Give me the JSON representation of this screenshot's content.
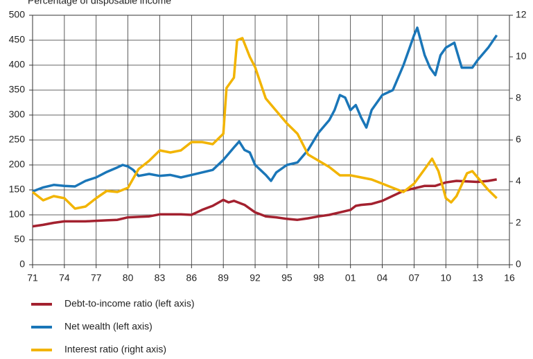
{
  "chart_data": {
    "type": "line",
    "subtitle": "Percentage of disposable income",
    "xlim": [
      1971,
      2016
    ],
    "xticks": [
      {
        "value": 1971,
        "label": "71"
      },
      {
        "value": 1974,
        "label": "74"
      },
      {
        "value": 1977,
        "label": "77"
      },
      {
        "value": 1980,
        "label": "80"
      },
      {
        "value": 1983,
        "label": "83"
      },
      {
        "value": 1986,
        "label": "86"
      },
      {
        "value": 1989,
        "label": "89"
      },
      {
        "value": 1992,
        "label": "92"
      },
      {
        "value": 1995,
        "label": "95"
      },
      {
        "value": 1998,
        "label": "98"
      },
      {
        "value": 2001,
        "label": "01"
      },
      {
        "value": 2004,
        "label": "04"
      },
      {
        "value": 2007,
        "label": "07"
      },
      {
        "value": 2010,
        "label": "10"
      },
      {
        "value": 2013,
        "label": "13"
      },
      {
        "value": 2016,
        "label": "16"
      }
    ],
    "ylim": [
      0,
      500
    ],
    "yticks": [
      0,
      50,
      100,
      150,
      200,
      250,
      300,
      350,
      400,
      450,
      500
    ],
    "y2lim": [
      0,
      12
    ],
    "y2ticks": [
      0,
      2,
      4,
      6,
      8,
      10,
      12
    ],
    "grid": true,
    "series": [
      {
        "name": "Debt-to-income ratio (left axis)",
        "color": "#a3212f",
        "x": [
          1971,
          1972,
          1973,
          1974,
          1975,
          1976,
          1977,
          1978,
          1979,
          1980,
          1981,
          1982,
          1983,
          1984,
          1985,
          1986,
          1987,
          1988,
          1989,
          1989.5,
          1990,
          1991,
          1992,
          1993,
          1994,
          1995,
          1996,
          1997,
          1998,
          1999,
          2000,
          2001,
          2001.5,
          2002,
          2003,
          2004,
          2005,
          2006,
          2007,
          2008,
          2009,
          2010,
          2011,
          2012,
          2013,
          2014,
          2014.8
        ],
        "values": [
          77,
          80,
          84,
          87,
          87,
          87,
          88,
          89,
          90,
          95,
          96,
          97,
          101,
          101,
          101,
          100,
          110,
          118,
          130,
          125,
          128,
          120,
          105,
          97,
          95,
          92,
          90,
          93,
          97,
          100,
          105,
          110,
          118,
          120,
          122,
          128,
          138,
          148,
          153,
          158,
          158,
          165,
          168,
          167,
          166,
          168,
          171
        ]
      },
      {
        "name": "Net wealth (left axis)",
        "color": "#1a76b8",
        "x": [
          1971,
          1972,
          1973,
          1974,
          1975,
          1976,
          1977,
          1978,
          1979,
          1979.5,
          1980,
          1980.5,
          1981,
          1982,
          1983,
          1984,
          1985,
          1986,
          1987,
          1988,
          1989,
          1990,
          1990.5,
          1991,
          1991.5,
          1992,
          1993,
          1993.5,
          1994,
          1995,
          1996,
          1997,
          1998,
          1999,
          1999.5,
          2000,
          2000.5,
          2001,
          2001.5,
          2002,
          2002.5,
          2003,
          2004,
          2005,
          2006,
          2006.5,
          2007,
          2007.3,
          2008,
          2008.5,
          2009,
          2009.5,
          2010,
          2010.8,
          2011.5,
          2012,
          2012.5,
          2013,
          2014,
          2014.8
        ],
        "values": [
          147,
          155,
          160,
          158,
          157,
          168,
          175,
          186,
          195,
          200,
          197,
          190,
          178,
          182,
          178,
          180,
          175,
          180,
          185,
          190,
          210,
          235,
          247,
          230,
          225,
          200,
          180,
          168,
          185,
          200,
          205,
          230,
          265,
          290,
          310,
          340,
          335,
          310,
          320,
          295,
          275,
          310,
          340,
          350,
          400,
          430,
          460,
          475,
          420,
          395,
          380,
          420,
          435,
          445,
          395,
          395,
          395,
          410,
          435,
          460
        ]
      },
      {
        "name": "Interest ratio (right axis)",
        "color": "#f2b400",
        "axis": "y2",
        "x": [
          1971,
          1972,
          1973,
          1974,
          1975,
          1976,
          1977,
          1978,
          1979,
          1980,
          1981,
          1982,
          1983,
          1984,
          1985,
          1986,
          1987,
          1988,
          1989,
          1989.3,
          1990,
          1990.3,
          1990.8,
          1991.5,
          1992,
          1993,
          1994,
          1995,
          1996,
          1997,
          1998,
          1999,
          2000,
          2001,
          2002,
          2003,
          2004,
          2005,
          2006,
          2007,
          2008,
          2008.7,
          2009.3,
          2010,
          2010.5,
          2011,
          2012,
          2012.5,
          2013,
          2014,
          2014.8
        ],
        "values": [
          3.5,
          3.1,
          3.3,
          3.2,
          2.7,
          2.8,
          3.2,
          3.55,
          3.5,
          3.7,
          4.6,
          5.0,
          5.5,
          5.4,
          5.5,
          5.9,
          5.9,
          5.8,
          6.3,
          8.5,
          9.0,
          10.8,
          10.9,
          10.0,
          9.5,
          8.0,
          7.4,
          6.8,
          6.3,
          5.3,
          5.0,
          4.7,
          4.3,
          4.3,
          4.2,
          4.1,
          3.9,
          3.7,
          3.5,
          3.9,
          4.6,
          5.1,
          4.5,
          3.2,
          3.0,
          3.3,
          4.4,
          4.5,
          4.2,
          3.6,
          3.2
        ]
      }
    ]
  }
}
